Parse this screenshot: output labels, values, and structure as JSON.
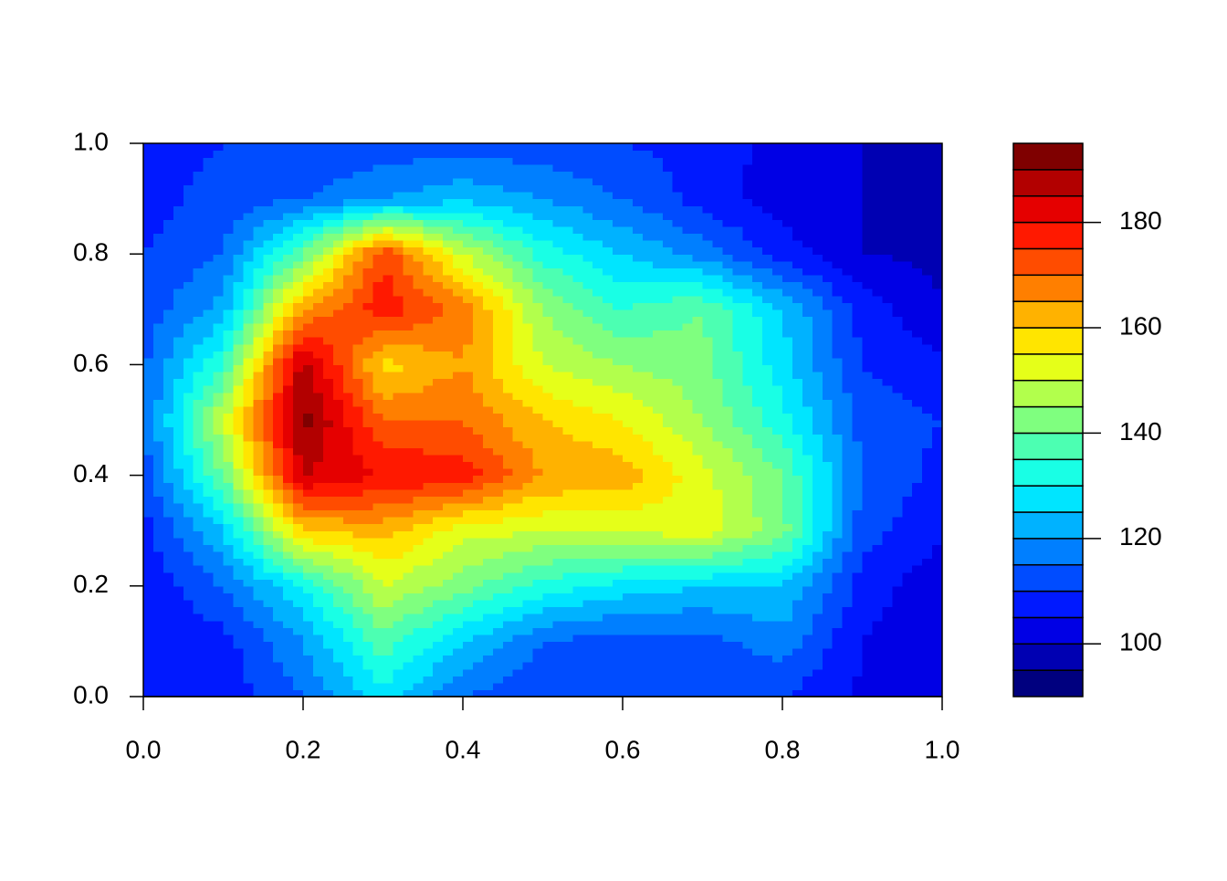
{
  "chart_data": {
    "type": "filled-contour",
    "x": [
      0,
      0.1,
      0.2,
      0.3,
      0.4,
      0.5,
      0.6,
      0.7,
      0.8,
      0.9,
      1
    ],
    "y": [
      0,
      0.1,
      0.2,
      0.3,
      0.4,
      0.5,
      0.6,
      0.7,
      0.8,
      0.9,
      1
    ],
    "z": [
      [
        106,
        107,
        115,
        128,
        115,
        110,
        110,
        110,
        110,
        104,
        100
      ],
      [
        106,
        108,
        120,
        138,
        125,
        115,
        112,
        113,
        118,
        105,
        100
      ],
      [
        106,
        115,
        130,
        150,
        142,
        133,
        128,
        125,
        125,
        108,
        101
      ],
      [
        108,
        125,
        160,
        162,
        152,
        150,
        150,
        153,
        142,
        112,
        106
      ],
      [
        112,
        140,
        185,
        180,
        178,
        165,
        163,
        152,
        140,
        115,
        108
      ],
      [
        115,
        150,
        192,
        170,
        170,
        160,
        155,
        145,
        132,
        113,
        110
      ],
      [
        114,
        135,
        188,
        158,
        165,
        150,
        145,
        142,
        127,
        110,
        106
      ],
      [
        112,
        122,
        165,
        178,
        168,
        145,
        135,
        140,
        125,
        108,
        100
      ],
      [
        110,
        115,
        140,
        175,
        150,
        133,
        125,
        118,
        108,
        100,
        99
      ],
      [
        108,
        112,
        115,
        120,
        124,
        120,
        115,
        108,
        102,
        100,
        96
      ],
      [
        108,
        110,
        110,
        112,
        112,
        112,
        110,
        108,
        103,
        100,
        95
      ]
    ],
    "levels": [
      90,
      95,
      100,
      105,
      110,
      115,
      120,
      125,
      130,
      135,
      140,
      145,
      150,
      155,
      160,
      165,
      170,
      175,
      180,
      185,
      190,
      195
    ],
    "colors": [
      "#00007F",
      "#0000B2",
      "#0000E5",
      "#0019FF",
      "#004CFF",
      "#007FFF",
      "#00B2FF",
      "#00E5FF",
      "#19FFE5",
      "#4CFFB2",
      "#7FFF7F",
      "#B2FF4C",
      "#E5FF19",
      "#FFE500",
      "#FFB200",
      "#FF7F00",
      "#FF4C00",
      "#FF1900",
      "#E50000",
      "#B20000",
      "#7F0000"
    ],
    "xlim": [
      0,
      1
    ],
    "ylim": [
      0,
      1
    ],
    "xticks": [
      {
        "value": 0,
        "label": "0.0"
      },
      0.2,
      0.4,
      0.6,
      0.8,
      {
        "value": 1,
        "label": "1.0"
      }
    ],
    "yticks": [
      {
        "value": 0,
        "label": "0.0"
      },
      0.2,
      0.4,
      0.6,
      0.8,
      {
        "value": 1,
        "label": "1.0"
      }
    ],
    "zticks": [
      100,
      120,
      140,
      160,
      180
    ]
  }
}
